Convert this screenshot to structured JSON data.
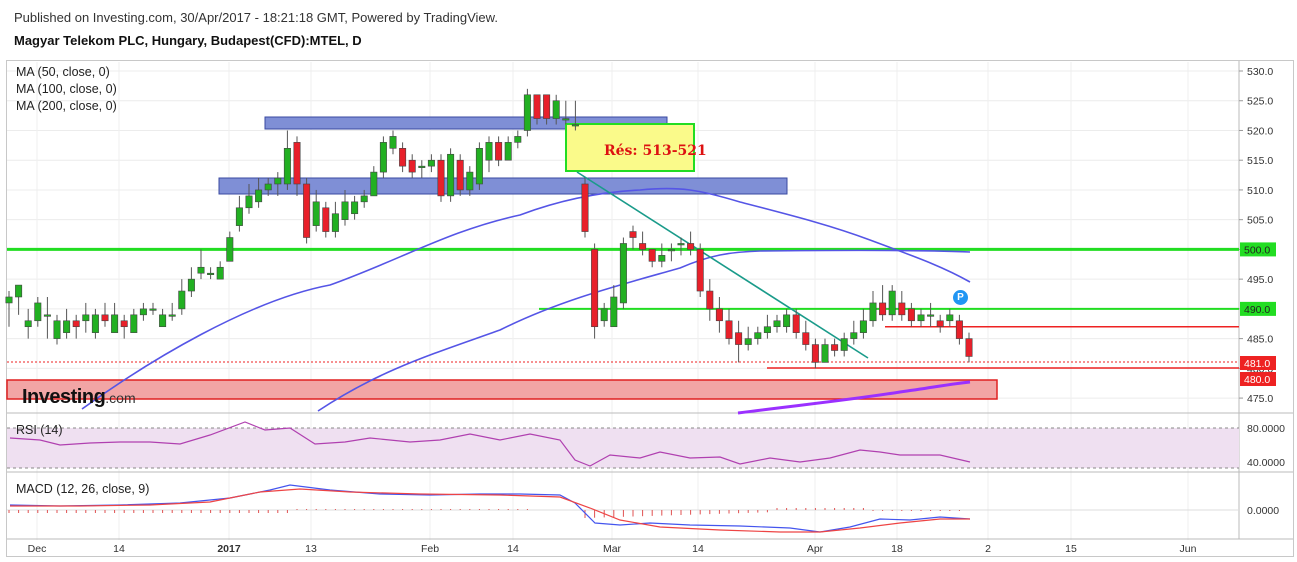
{
  "header": {
    "published": "Published on Investing.com, 30/Apr/2017 - 18:21:18 GMT, Powered by TradingView.",
    "instrument": "Magyar Telekom PLC, Hungary, Budapest(CFD):MTEL, D"
  },
  "legend": {
    "ma50": "MA (50, close, 0)",
    "ma100": "MA (100, close, 0)",
    "ma200": "MA (200, close, 0)",
    "rsi": "RSI (14)",
    "macd": "MACD (12, 26, close, 9)"
  },
  "logo": {
    "name": "Investing",
    "domain": ".com"
  },
  "annotation": {
    "resistance_label": "Rés: 513-521",
    "badge": "P"
  },
  "colors": {
    "up": "#22b022",
    "down": "#e8202a",
    "ma50": "#5555e6",
    "ma100": "#5555e6",
    "ma200": "#9b30ff",
    "green_line": "#22dd22",
    "red_line": "#ee2222",
    "zone_blue": "#7f8fd6",
    "zone_yellow": "#fafa8a",
    "zone_red": "#f2a5a5",
    "trend": "#1a9b8a",
    "rsi": "#b040b0",
    "macd": "#4455ee",
    "signal": "#ee4444"
  },
  "chart_data": [
    {
      "type": "candlestick",
      "price_axis_ticks": [
        "530.0",
        "525.0",
        "520.0",
        "515.0",
        "510.0",
        "505.0",
        "500.0",
        "495.0",
        "490.0",
        "485.0",
        "480.0",
        "475.0"
      ],
      "price_labels": {
        "green": "500.0",
        "green2": "490.0",
        "red1": "481.0",
        "red2": "480.0"
      },
      "x_ticks": [
        {
          "label": "Dec",
          "bold": false
        },
        {
          "label": "14",
          "bold": false
        },
        {
          "label": "2017",
          "bold": true
        },
        {
          "label": "13",
          "bold": false
        },
        {
          "label": "Feb",
          "bold": false
        },
        {
          "label": "14",
          "bold": false
        },
        {
          "label": "Mar",
          "bold": false
        },
        {
          "label": "14",
          "bold": false
        },
        {
          "label": "Apr",
          "bold": false
        },
        {
          "label": "18",
          "bold": false
        },
        {
          "label": "2",
          "bold": false
        },
        {
          "label": "15",
          "bold": false
        },
        {
          "label": "Jun",
          "bold": false
        }
      ],
      "ylim": [
        472,
        531
      ],
      "candles": [
        [
          491,
          492,
          487,
          493
        ],
        [
          492,
          494,
          489,
          494
        ],
        [
          487,
          488,
          485,
          490
        ],
        [
          488,
          491,
          487,
          492
        ],
        [
          489,
          489,
          485,
          492
        ],
        [
          485,
          488,
          484,
          489
        ],
        [
          486,
          488,
          485,
          490
        ],
        [
          488,
          487,
          485,
          489
        ],
        [
          488,
          489,
          486,
          491
        ],
        [
          486,
          489,
          485,
          490
        ],
        [
          489,
          488,
          487,
          491
        ],
        [
          486,
          489,
          486,
          491
        ],
        [
          488,
          487,
          485,
          489
        ],
        [
          486,
          489,
          486,
          490
        ],
        [
          489,
          490,
          488,
          491
        ],
        [
          490,
          490,
          489,
          491
        ],
        [
          487,
          489,
          487,
          490
        ],
        [
          489,
          489,
          488,
          491
        ],
        [
          490,
          493,
          489,
          495
        ],
        [
          493,
          495,
          492,
          497
        ],
        [
          496,
          497,
          495,
          500
        ],
        [
          496,
          496,
          495,
          497
        ],
        [
          495,
          497,
          495,
          498
        ],
        [
          498,
          502,
          498,
          503
        ],
        [
          504,
          507,
          503,
          509
        ],
        [
          507,
          509,
          506,
          511
        ],
        [
          508,
          510,
          507,
          512
        ],
        [
          510,
          511,
          509,
          512
        ],
        [
          511,
          512,
          509,
          513
        ],
        [
          511,
          517,
          510,
          520
        ],
        [
          518,
          511,
          509,
          519
        ],
        [
          511,
          502,
          501,
          512
        ],
        [
          504,
          508,
          503,
          510
        ],
        [
          507,
          503,
          502,
          508
        ],
        [
          503,
          506,
          502,
          508
        ],
        [
          505,
          508,
          504,
          510
        ],
        [
          506,
          508,
          505,
          509
        ],
        [
          508,
          509,
          507,
          510
        ],
        [
          509,
          513,
          509,
          514
        ],
        [
          513,
          518,
          512,
          519
        ],
        [
          517,
          519,
          516,
          520
        ],
        [
          517,
          514,
          513,
          518
        ],
        [
          515,
          513,
          512,
          516
        ],
        [
          514,
          514,
          512,
          515
        ],
        [
          514,
          515,
          513,
          516
        ],
        [
          515,
          509,
          508,
          516
        ],
        [
          509,
          516,
          508,
          517
        ],
        [
          515,
          510,
          509,
          516
        ],
        [
          510,
          513,
          509,
          514
        ],
        [
          511,
          517,
          510,
          518
        ],
        [
          515,
          518,
          513,
          519
        ],
        [
          518,
          515,
          514,
          519
        ],
        [
          515,
          518,
          515,
          519
        ],
        [
          518,
          519,
          517,
          520
        ],
        [
          520,
          526,
          519,
          527
        ],
        [
          526,
          522,
          521,
          526
        ],
        [
          526,
          522,
          521,
          526
        ],
        [
          522,
          525,
          521,
          526
        ],
        [
          522,
          522,
          521,
          525
        ],
        [
          521,
          521,
          520,
          525
        ],
        [
          511,
          503,
          502,
          512
        ],
        [
          500,
          487,
          485,
          501
        ],
        [
          488,
          490,
          487,
          491
        ],
        [
          487,
          492,
          487,
          494
        ],
        [
          491,
          501,
          490,
          502
        ],
        [
          503,
          502,
          500,
          504
        ],
        [
          501,
          500,
          499,
          503
        ],
        [
          500,
          498,
          497,
          500
        ],
        [
          498,
          499,
          497,
          501
        ],
        [
          500,
          500,
          498,
          501
        ],
        [
          501,
          501,
          499,
          502
        ],
        [
          501,
          500,
          499,
          503
        ],
        [
          500,
          493,
          492,
          501
        ],
        [
          493,
          490,
          488,
          495
        ],
        [
          490,
          488,
          486,
          492
        ],
        [
          488,
          485,
          484,
          490
        ],
        [
          486,
          484,
          481,
          488
        ],
        [
          484,
          485,
          483,
          487
        ],
        [
          485,
          486,
          484,
          487
        ],
        [
          486,
          487,
          485,
          489
        ],
        [
          487,
          488,
          486,
          489
        ],
        [
          487,
          489,
          486,
          490
        ],
        [
          489,
          486,
          485,
          490
        ],
        [
          486,
          484,
          483,
          488
        ],
        [
          484,
          481,
          480,
          485
        ],
        [
          481,
          484,
          481,
          485
        ],
        [
          484,
          483,
          482,
          485
        ],
        [
          483,
          485,
          482,
          486
        ],
        [
          485,
          486,
          484,
          488
        ],
        [
          486,
          488,
          485,
          490
        ],
        [
          488,
          491,
          487,
          493
        ],
        [
          491,
          489,
          488,
          494
        ],
        [
          489,
          493,
          488,
          494
        ],
        [
          491,
          489,
          488,
          493
        ],
        [
          490,
          488,
          487,
          491
        ],
        [
          488,
          489,
          487,
          490
        ],
        [
          489,
          489,
          487,
          491
        ],
        [
          488,
          487,
          486,
          489
        ],
        [
          488,
          489,
          487,
          490
        ],
        [
          488,
          485,
          484,
          489
        ],
        [
          485,
          482,
          481,
          486
        ]
      ]
    },
    {
      "type": "line",
      "name": "RSI (14)",
      "ticks": [
        "80.0000",
        "40.0000"
      ],
      "ylim": [
        20,
        90
      ]
    },
    {
      "type": "line",
      "name": "MACD (12, 26, close, 9)",
      "ticks": [
        "0.0000"
      ]
    }
  ]
}
